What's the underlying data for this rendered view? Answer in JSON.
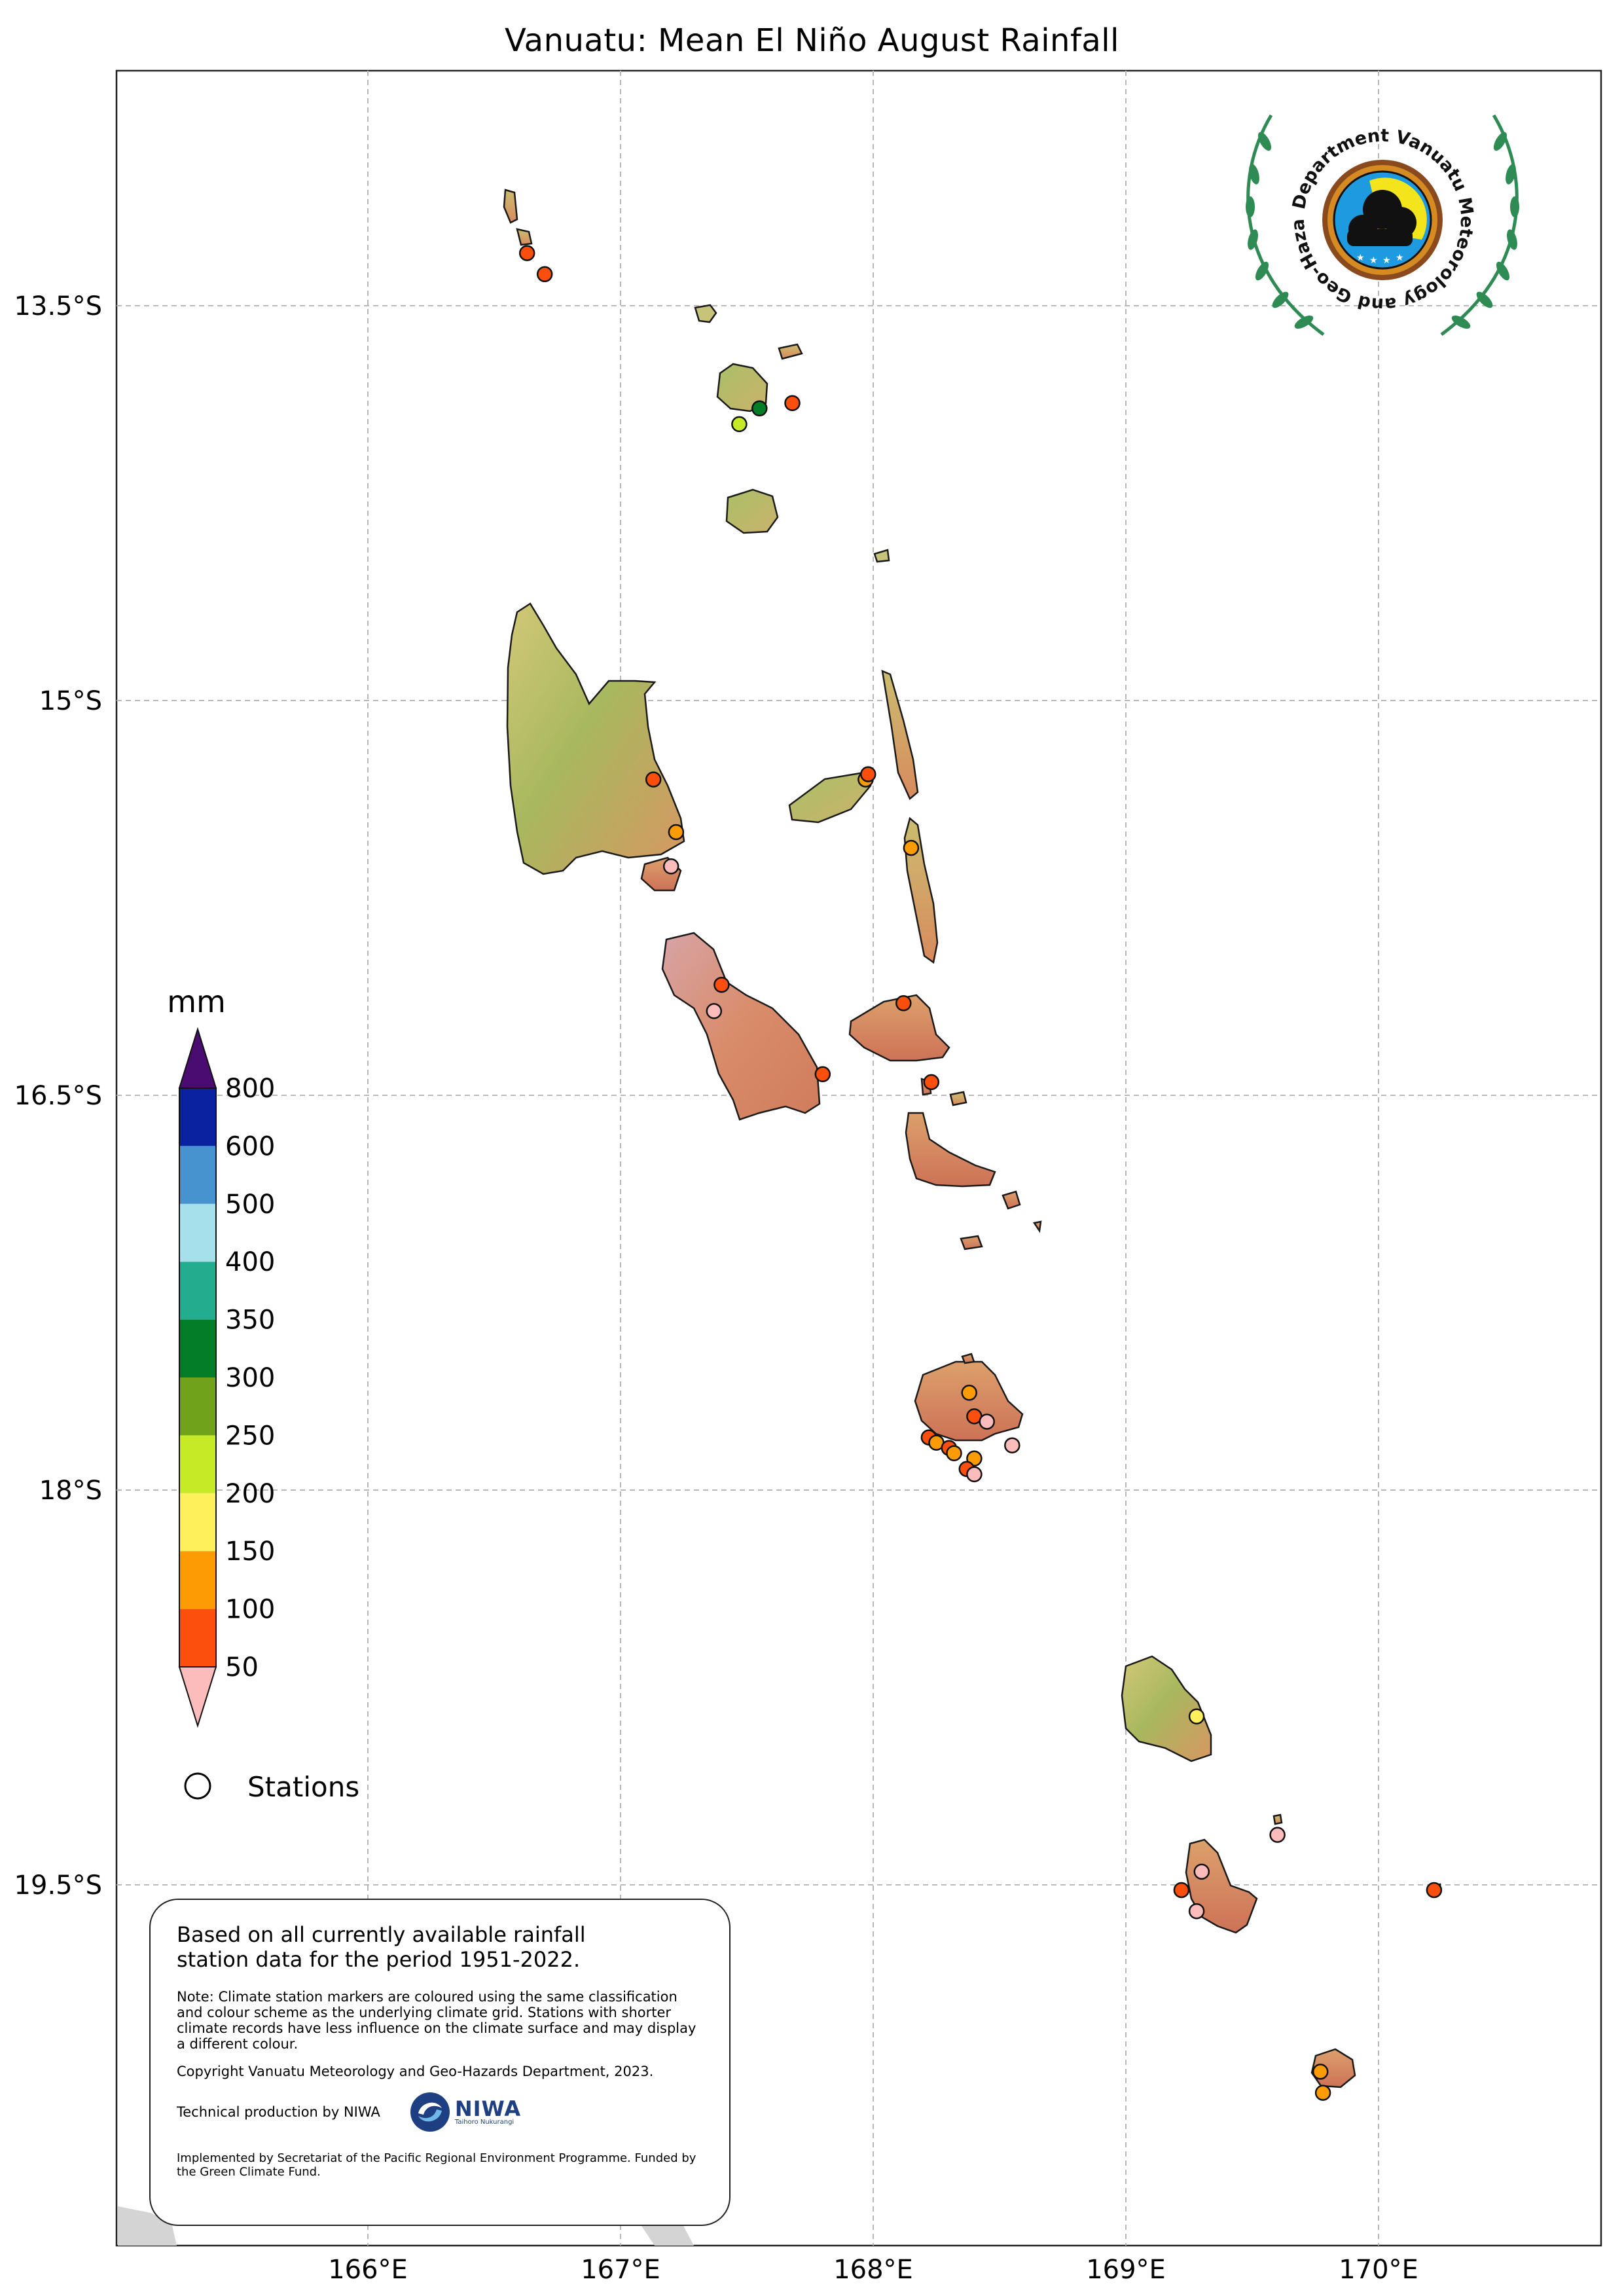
{
  "title": "Vanuatu: Mean El Niño August Rainfall",
  "axes": {
    "lon_ticks": [
      "166°E",
      "167°E",
      "168°E",
      "169°E",
      "170°E"
    ],
    "lat_ticks": [
      "13.5°S",
      "15°S",
      "16.5°S",
      "18°S",
      "19.5°S"
    ],
    "lon_range": [
      165.0,
      170.88
    ],
    "lat_range": [
      -12.76,
      -21.02
    ],
    "grid": true
  },
  "colorbar": {
    "unit": "mm",
    "levels": [
      "50",
      "100",
      "150",
      "200",
      "250",
      "300",
      "350",
      "400",
      "500",
      "600",
      "800"
    ],
    "colors": [
      "#fc4e0c",
      "#fd9b05",
      "#fdf05a",
      "#c7ea27",
      "#70a31b",
      "#047d28",
      "#23ac8e",
      "#a6e0ea",
      "#4693cf",
      "#0a22a0"
    ],
    "under_color": "#fcbcbc",
    "over_color": "#4a0c70"
  },
  "legend": {
    "stations_label": "Stations"
  },
  "logo": {
    "ring_text": "Department Vanuatu Meteorology and Geo-Hazards"
  },
  "notes": {
    "main": "Based on all currently available rainfall station data for the period 1951-2022.",
    "note": "Note: Climate station markers are coloured using the same classification and colour scheme as the underlying climate grid. Stations with shorter climate records have less influence on the climate surface and may display a different colour.",
    "copyright": "Copyright Vanuatu Meteorology and Geo-Hazards Department, 2023.",
    "technical": "Technical production by NIWA",
    "niwa_logo_text": "NIWA",
    "niwa_tagline": "Taihoro Nukurangi",
    "implemented": "Implemented by Secretariat of the Pacific Regional Environment Programme. Funded by the Green Climate Fund."
  },
  "stations": [
    {
      "lon": 166.63,
      "lat": -13.3,
      "color": "#fc4e0c"
    },
    {
      "lon": 166.7,
      "lat": -13.38,
      "color": "#fc4e0c"
    },
    {
      "lon": 167.55,
      "lat": -13.89,
      "color": "#047d28"
    },
    {
      "lon": 167.47,
      "lat": -13.95,
      "color": "#c7ea27"
    },
    {
      "lon": 167.68,
      "lat": -13.87,
      "color": "#fc4e0c"
    },
    {
      "lon": 167.13,
      "lat": -15.3,
      "color": "#fc4e0c"
    },
    {
      "lon": 167.22,
      "lat": -15.5,
      "color": "#fd9b05"
    },
    {
      "lon": 167.2,
      "lat": -15.63,
      "color": "#fcbcbc"
    },
    {
      "lon": 167.97,
      "lat": -15.3,
      "color": "#fd9b05"
    },
    {
      "lon": 167.98,
      "lat": -15.28,
      "color": "#fc4e0c"
    },
    {
      "lon": 168.15,
      "lat": -15.56,
      "color": "#fd9b05"
    },
    {
      "lon": 167.4,
      "lat": -16.08,
      "color": "#fc4e0c"
    },
    {
      "lon": 167.37,
      "lat": -16.18,
      "color": "#fcbcbc"
    },
    {
      "lon": 167.8,
      "lat": -16.42,
      "color": "#fc4e0c"
    },
    {
      "lon": 168.12,
      "lat": -16.15,
      "color": "#fc4e0c"
    },
    {
      "lon": 168.23,
      "lat": -16.45,
      "color": "#fc4e0c"
    },
    {
      "lon": 168.38,
      "lat": -17.63,
      "color": "#fd9b05"
    },
    {
      "lon": 168.4,
      "lat": -17.72,
      "color": "#fc4e0c"
    },
    {
      "lon": 168.45,
      "lat": -17.74,
      "color": "#fcbcbc"
    },
    {
      "lon": 168.55,
      "lat": -17.83,
      "color": "#fcbcbc"
    },
    {
      "lon": 168.22,
      "lat": -17.8,
      "color": "#fc4e0c"
    },
    {
      "lon": 168.25,
      "lat": -17.82,
      "color": "#fd9b05"
    },
    {
      "lon": 168.3,
      "lat": -17.84,
      "color": "#fc4e0c"
    },
    {
      "lon": 168.32,
      "lat": -17.86,
      "color": "#fd9b05"
    },
    {
      "lon": 168.4,
      "lat": -17.88,
      "color": "#fd9b05"
    },
    {
      "lon": 168.37,
      "lat": -17.92,
      "color": "#fc4e0c"
    },
    {
      "lon": 168.4,
      "lat": -17.94,
      "color": "#fcbcbc"
    },
    {
      "lon": 169.28,
      "lat": -18.86,
      "color": "#fdf05a"
    },
    {
      "lon": 169.6,
      "lat": -19.31,
      "color": "#fcbcbc"
    },
    {
      "lon": 169.3,
      "lat": -19.45,
      "color": "#fcbcbc"
    },
    {
      "lon": 169.22,
      "lat": -19.52,
      "color": "#fc4e0c"
    },
    {
      "lon": 169.28,
      "lat": -19.6,
      "color": "#fcbcbc"
    },
    {
      "lon": 170.22,
      "lat": -19.52,
      "color": "#fc4e0c"
    },
    {
      "lon": 169.77,
      "lat": -20.21,
      "color": "#fd9b05"
    },
    {
      "lon": 169.78,
      "lat": -20.29,
      "color": "#fd9b05"
    }
  ]
}
